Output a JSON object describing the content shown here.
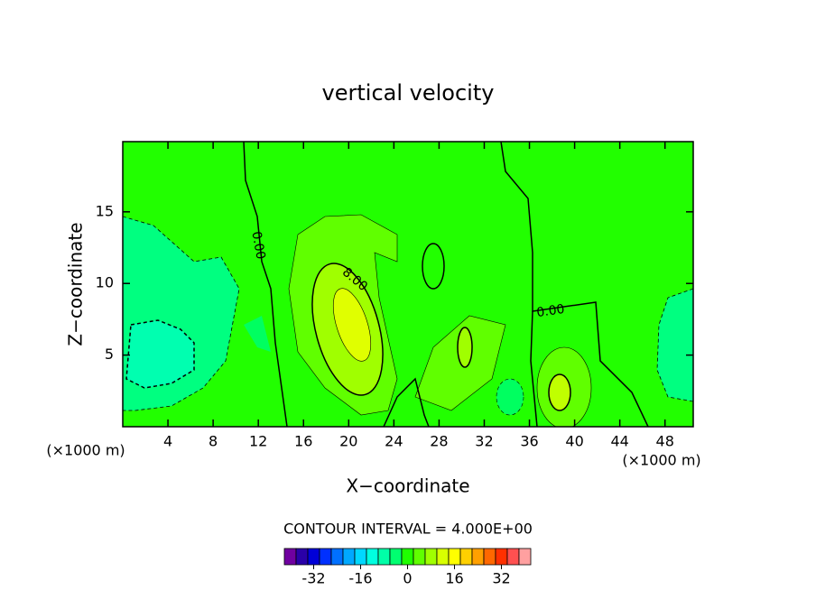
{
  "chart_data": {
    "type": "contour",
    "title": "vertical velocity",
    "x_label": "X−coordinate",
    "y_label": "Z−coordinate",
    "x_unit_label": "(×1000 m)",
    "y_unit_label": "(×1000 m)",
    "xlim": [
      0,
      50.5
    ],
    "xticks": [
      4,
      8,
      12,
      16,
      20,
      24,
      28,
      32,
      36,
      40,
      44,
      48
    ],
    "ylim": [
      0,
      19.9
    ],
    "yticks": [
      5,
      10,
      15
    ],
    "contour_interval_label": "CONTOUR INTERVAL = 4.000E+00",
    "contour_labels": [
      "0.00",
      "8.00",
      "0.00"
    ],
    "colorbar": {
      "levels": [
        -42,
        -38,
        -34,
        -30,
        -26,
        -22,
        -18,
        -14,
        -10,
        -6,
        -2,
        2,
        6,
        10,
        14,
        18,
        22,
        26,
        30,
        34,
        38,
        42
      ],
      "colors": [
        "#7000a0",
        "#2a00a8",
        "#0000d8",
        "#0030ff",
        "#0070ff",
        "#00a8ff",
        "#00d8ff",
        "#00ffe0",
        "#00ffa8",
        "#00ff70",
        "#20ff00",
        "#60ff00",
        "#a0ff00",
        "#d8ff00",
        "#ffff00",
        "#ffd000",
        "#ffa000",
        "#ff6800",
        "#ff3000",
        "#ff5050",
        "#ffa0a0"
      ],
      "ticks": [
        -32,
        -16,
        0,
        16,
        32
      ]
    }
  }
}
